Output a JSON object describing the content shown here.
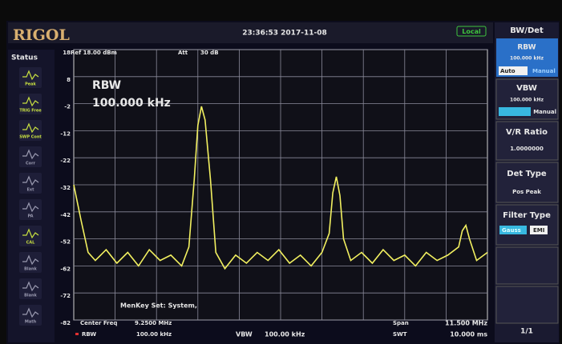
{
  "header": {
    "brand": "RIGOL",
    "datetime": "23:36:53 2017-11-08",
    "mode": "Local"
  },
  "status": {
    "title": "Status",
    "items": [
      "Peak",
      "TRIG Free",
      "SWP Cont",
      "Corr",
      "Ext",
      "PA",
      "CAL",
      "Blank",
      "Blank",
      "Math"
    ]
  },
  "trace_info": {
    "ref": "Ref 18.00 dBm",
    "att_label": "Att",
    "att": "30 dB",
    "rbw_label": "RBW",
    "rbw": "100.000 kHz",
    "message": "MenKey Set: System,"
  },
  "footer": {
    "center_label": "Center Freq",
    "center": "9.2500 MHz",
    "rbw_label": "RBW",
    "rbw": "100.00 kHz",
    "vbw_label": "VBW",
    "vbw": "100.00 kHz",
    "span_label": "Span",
    "span": "11.500 MHz",
    "swt_label": "SWT",
    "swt": "10.000 ms"
  },
  "menu": {
    "title": "BW/Det",
    "rbw": {
      "label": "RBW",
      "value": "100.000 kHz",
      "options": [
        "Auto",
        "Manual"
      ]
    },
    "vbw": {
      "label": "VBW",
      "value": "100.000 kHz",
      "option": "Manual"
    },
    "ratio": {
      "label": "V/R Ratio",
      "value": "1.0000000"
    },
    "det": {
      "label": "Det Type",
      "value": "Pos Peak"
    },
    "filter": {
      "label": "Filter Type",
      "options": [
        "Gauss",
        "EMI"
      ]
    },
    "page": "1/1"
  },
  "chart_data": {
    "type": "line",
    "color": "#f2f060",
    "x": [
      3.5,
      3.7,
      3.9,
      4.1,
      4.4,
      4.7,
      5.0,
      5.3,
      5.6,
      5.9,
      6.2,
      6.5,
      6.7,
      6.85,
      6.95,
      7.05,
      7.15,
      7.3,
      7.45,
      7.7,
      8.0,
      8.3,
      8.6,
      8.9,
      9.2,
      9.5,
      9.8,
      10.1,
      10.4,
      10.6,
      10.7,
      10.8,
      10.9,
      11.0,
      11.2,
      11.5,
      11.8,
      12.1,
      12.4,
      12.7,
      13.0,
      13.3,
      13.6,
      13.9,
      14.2,
      14.3,
      14.4,
      14.5,
      14.7,
      15.0
    ],
    "values": [
      -32,
      -45,
      -57,
      -60,
      -56,
      -61,
      -57,
      -62,
      -56,
      -60,
      -58,
      -62,
      -55,
      -30,
      -10,
      -3,
      -8,
      -30,
      -57,
      -63,
      -58,
      -61,
      -57,
      -60,
      -56,
      -61,
      -58,
      -62,
      -57,
      -50,
      -35,
      -29,
      -36,
      -52,
      -60,
      -57,
      -61,
      -56,
      -60,
      -58,
      -62,
      -57,
      -60,
      -58,
      -55,
      -49,
      -47,
      -52,
      -60,
      -57
    ],
    "xlim": [
      3.5,
      15
    ],
    "ylim": [
      -82,
      18
    ],
    "yticks": [
      18,
      8,
      -2,
      -12,
      -22,
      -32,
      -42,
      -52,
      -62,
      -72,
      -82
    ],
    "grid": true
  }
}
